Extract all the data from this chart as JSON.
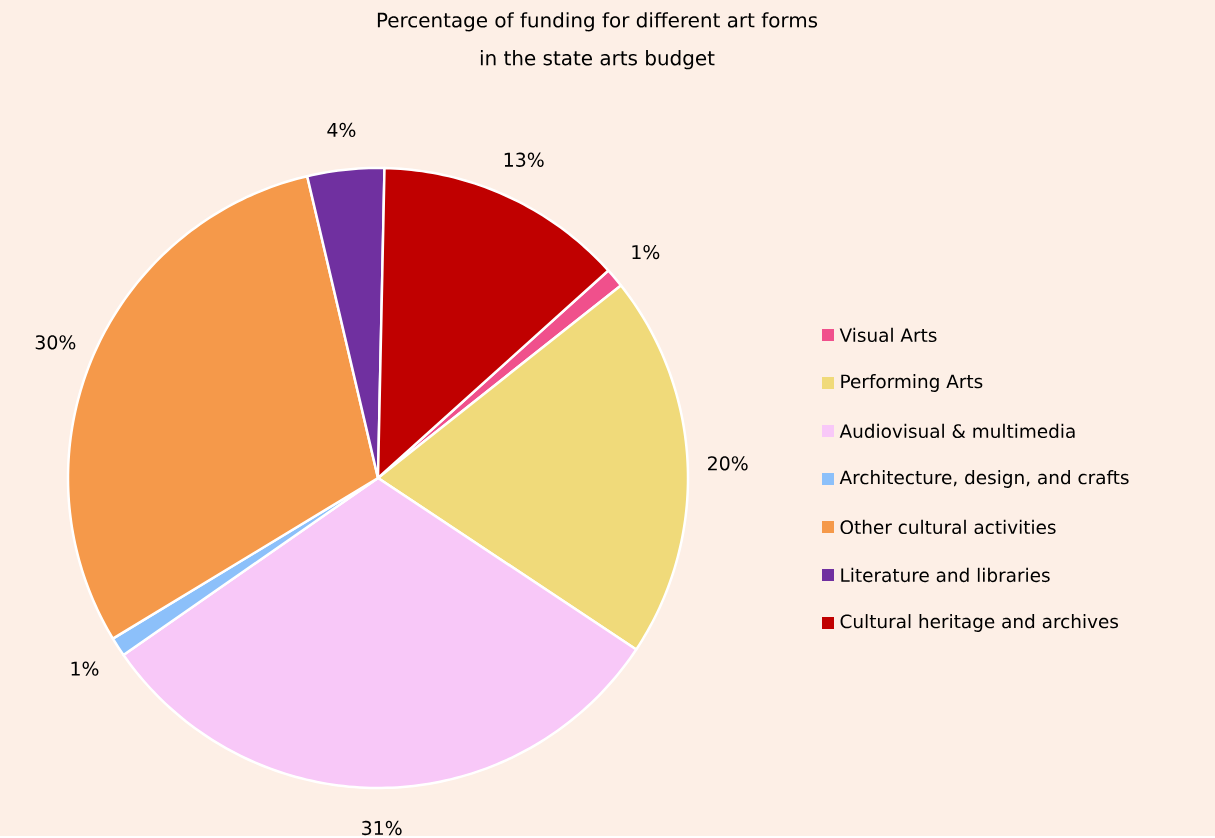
{
  "chart_data": {
    "type": "pie",
    "title": "Percentage of funding for different art forms\nin the state arts budget",
    "categories": [
      "Visual Arts",
      "Performing Arts",
      "Audiovisual & multimedia",
      "Architecture, design, and crafts",
      "Other cultural activities",
      "Literature and libraries",
      "Cultural heritage and archives"
    ],
    "values": [
      1,
      20,
      31,
      1,
      30,
      4,
      13
    ],
    "colors": [
      "#f0508c",
      "#f0da7a",
      "#f8c8f8",
      "#8cc0fa",
      "#f5994a",
      "#7030a0",
      "#c00000"
    ],
    "value_labels": [
      "1%",
      "20%",
      "31%",
      "1%",
      "30%",
      "4%",
      "13%"
    ],
    "legend": "right"
  }
}
